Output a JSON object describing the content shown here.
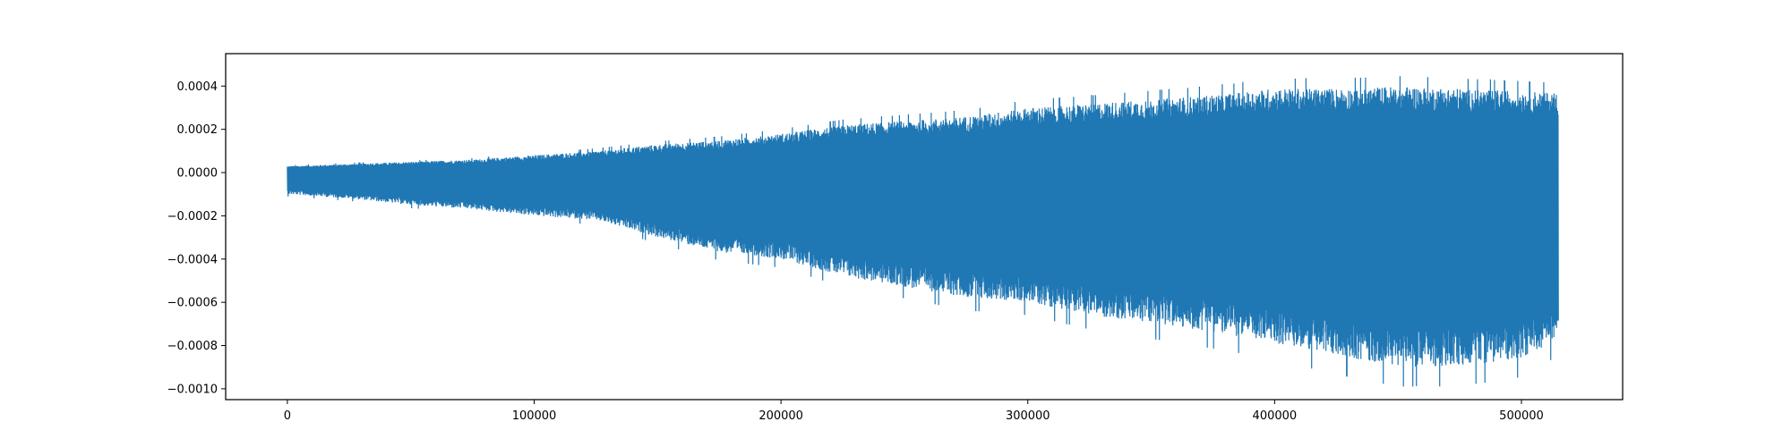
{
  "chart_data": {
    "type": "line",
    "title": "",
    "xlabel": "",
    "ylabel": "",
    "xlim": [
      -25000,
      541000
    ],
    "ylim": [
      -0.00105,
      0.00055
    ],
    "x_ticks": [
      0,
      100000,
      200000,
      300000,
      400000,
      500000
    ],
    "x_tick_labels": [
      "0",
      "100000",
      "200000",
      "300000",
      "400000",
      "500000"
    ],
    "y_ticks": [
      0.0004,
      0.0002,
      0.0,
      -0.0002,
      -0.0004,
      -0.0006,
      -0.0008,
      -0.001
    ],
    "y_tick_labels": [
      "0.0004",
      "0.0002",
      "0.0000",
      "−0.0002",
      "−0.0004",
      "−0.0006",
      "−0.0008",
      "−0.0010"
    ],
    "grid": false,
    "legend": "none",
    "series_color": "#1f77b4",
    "series": [
      {
        "x": [
          0,
          25000,
          50000,
          75000,
          100000,
          125000,
          150000,
          175000,
          200000,
          225000,
          250000,
          275000,
          300000,
          325000,
          350000,
          375000,
          400000,
          425000,
          450000,
          475000,
          500000,
          515000
        ],
        "upper": [
          3e-05,
          4e-05,
          5e-05,
          6e-05,
          8e-05,
          0.0001,
          0.00013,
          0.00015,
          0.00018,
          0.00022,
          0.00024,
          0.00026,
          0.0003,
          0.00032,
          0.00034,
          0.00036,
          0.00039,
          0.00039,
          0.0004,
          0.00039,
          0.00038,
          0.00037
        ],
        "lower": [
          -0.0001,
          -0.00012,
          -0.00015,
          -0.00017,
          -0.0002,
          -0.00022,
          -0.0003,
          -0.00037,
          -0.0004,
          -0.00048,
          -0.00053,
          -0.00058,
          -0.0006,
          -0.00066,
          -0.0007,
          -0.00074,
          -0.00079,
          -0.00085,
          -0.0009,
          -0.0009,
          -0.00086,
          -0.00077
        ]
      }
    ]
  }
}
